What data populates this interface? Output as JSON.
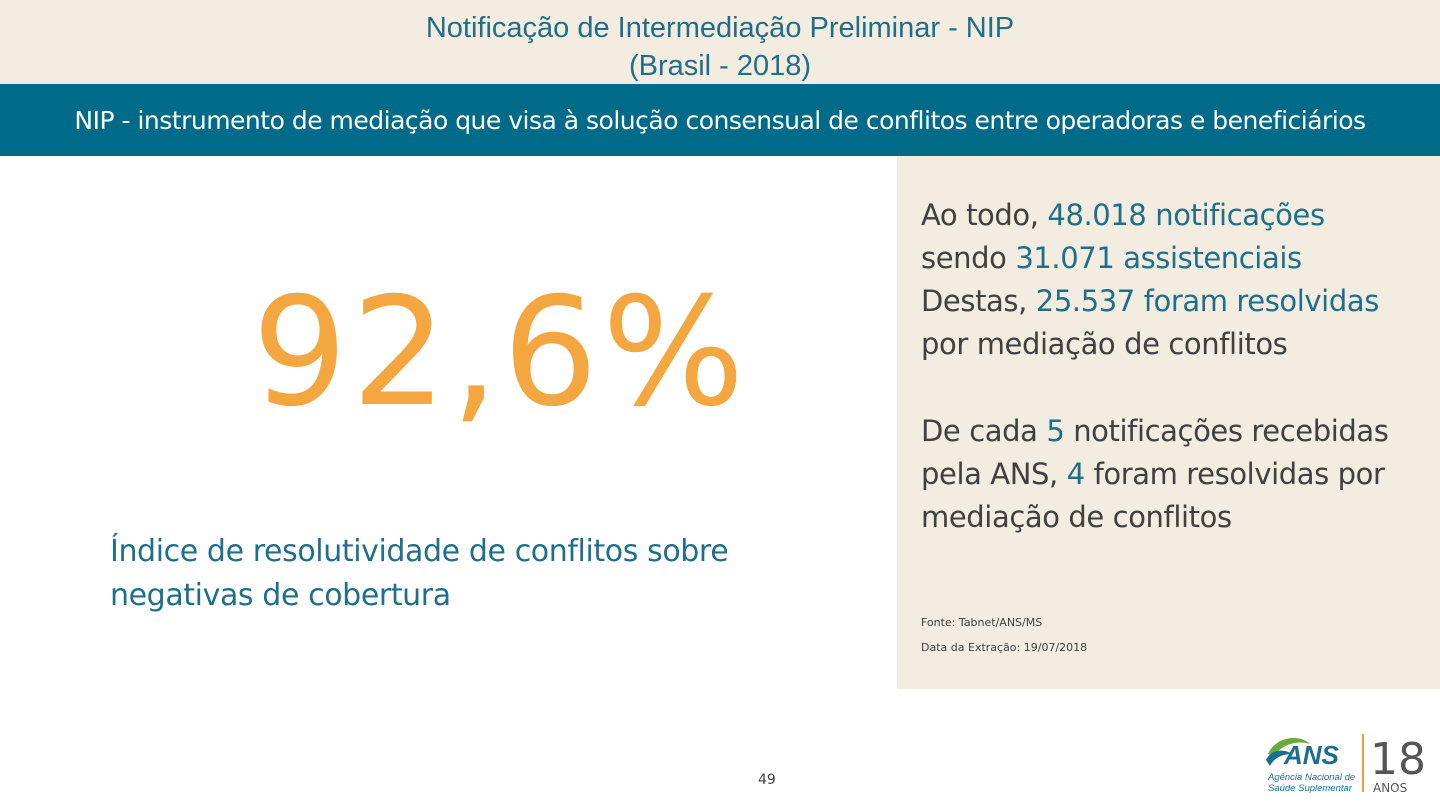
{
  "header": {
    "title_line1": "Notificação de Intermediação Preliminar - NIP",
    "title_line2": "(Brasil - 2018)"
  },
  "banner": {
    "text": "NIP - instrumento de mediação que visa à solução consensual de conflitos entre operadoras e beneficiários"
  },
  "kpi": {
    "value": "92,6%",
    "label_line1": "Índice de resolutividade de conflitos sobre",
    "label_line2": "negativas de cobertura"
  },
  "panel": {
    "para1": {
      "l1a": "Ao todo, ",
      "l1b": "48.018 notificações",
      "l2a": "sendo ",
      "l2b": "31.071 assistenciais",
      "l3a": "Destas, ",
      "l3b": "25.537 foram resolvidas",
      "l4": "por mediação de conflitos"
    },
    "para2": {
      "l1a": "De cada ",
      "l1b": "5",
      "l1c": " notificações recebidas",
      "l2a": "pela ANS, ",
      "l2b": "4",
      "l2c": " foram resolvidas por",
      "l3": "mediação de conflitos"
    },
    "source": "Fonte: Tabnet/ANS/MS",
    "extraction": "Data da Extração: 19/07/2018"
  },
  "footer": {
    "page_number": "49",
    "logo": {
      "brand": "ANS",
      "tagline1": "Agência Nacional de",
      "tagline2": "Saúde Suplementar",
      "years": "18",
      "years_label": "ANOS",
      "colors": {
        "blue": "#1a6e8e",
        "green": "#6aaa3a",
        "orange": "#e8a03c"
      }
    }
  }
}
